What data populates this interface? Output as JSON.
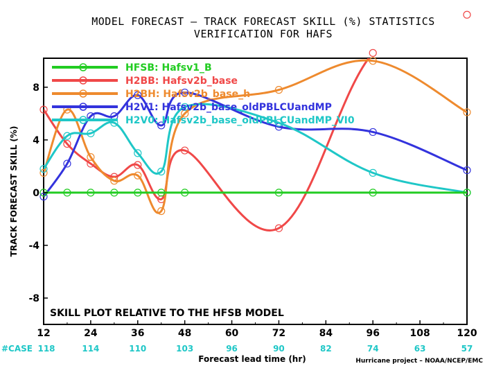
{
  "chart_data": {
    "type": "line",
    "title_line1": "MODEL FORECAST – TRACK FORECAST SKILL (%) STATISTICS",
    "title_line2": "VERIFICATION FOR HAFS",
    "xlabel": "Forecast lead time (hr)",
    "ylabel": "TRACK FORECAST SKILL (%)",
    "annotation": "SKILL PLOT RELATIVE TO THE HFSB MODEL",
    "credit": "Hurricane project – NOAA/NCEP/EMC",
    "case_label": "#CASE",
    "x_ticks": [
      12,
      24,
      36,
      48,
      60,
      72,
      84,
      96,
      108,
      120
    ],
    "y_ticks": [
      -8,
      -4,
      0,
      4,
      8
    ],
    "xlim": [
      12,
      120
    ],
    "ylim": [
      -10,
      10.2
    ],
    "grid": false,
    "legend_position": "top-left",
    "cases": [
      {
        "x": 12,
        "n": "118"
      },
      {
        "x": 24,
        "n": "114"
      },
      {
        "x": 36,
        "n": "110"
      },
      {
        "x": 48,
        "n": "103"
      },
      {
        "x": 60,
        "n": "96"
      },
      {
        "x": 72,
        "n": "90"
      },
      {
        "x": 84,
        "n": "82"
      },
      {
        "x": 96,
        "n": "74"
      },
      {
        "x": 108,
        "n": "63"
      },
      {
        "x": 120,
        "n": "57"
      }
    ],
    "series": [
      {
        "key": "HFSB",
        "name": "HFSB: Hafsv1_B",
        "color": "#22cc22",
        "x": [
          12,
          18,
          24,
          30,
          36,
          42,
          48,
          72,
          96,
          120
        ],
        "y": [
          0,
          0,
          0,
          0,
          0,
          0,
          0,
          0,
          0,
          0
        ]
      },
      {
        "key": "H2BB",
        "name": "H2BB: Hafsv2b_base",
        "color": "#f04848",
        "x": [
          12,
          18,
          24,
          30,
          36,
          42,
          48,
          72,
          96,
          120
        ],
        "y": [
          6.3,
          3.7,
          2.2,
          1.2,
          2.1,
          -0.5,
          3.2,
          -2.7,
          10.6,
          13.5
        ]
      },
      {
        "key": "H2BH",
        "name": "H2BH: Hafsv2b_base_h",
        "color": "#ee8a2e",
        "x": [
          12,
          18,
          24,
          30,
          36,
          42,
          48,
          72,
          96,
          120
        ],
        "y": [
          1.5,
          6.3,
          2.7,
          0.9,
          1.3,
          -1.4,
          6.0,
          7.8,
          10.0,
          6.1
        ]
      },
      {
        "key": "H2V1",
        "name": "H2V1: Hafsv2b_base_oldPBLCUandMP",
        "color": "#3333dd",
        "x": [
          12,
          18,
          24,
          30,
          36,
          42,
          48,
          72,
          96,
          120
        ],
        "y": [
          -0.3,
          2.2,
          5.8,
          5.8,
          7.4,
          5.1,
          7.6,
          5.0,
          4.6,
          1.7
        ]
      },
      {
        "key": "H2V0",
        "name": "H2V0: Hafsv2b_base_oldPBLCUandMP_VI0",
        "color": "#1fc7c7",
        "x": [
          12,
          18,
          24,
          30,
          36,
          42,
          48,
          72,
          96,
          120
        ],
        "y": [
          1.8,
          4.3,
          4.5,
          5.3,
          3.0,
          1.6,
          6.5,
          5.3,
          1.5,
          0.0
        ]
      }
    ]
  }
}
